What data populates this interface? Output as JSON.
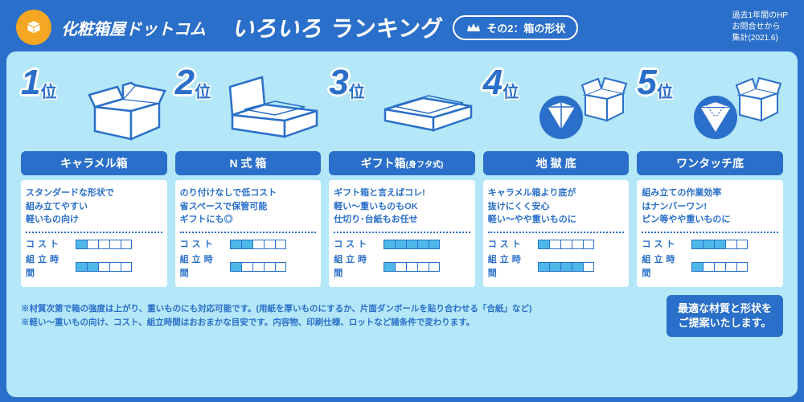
{
  "header": {
    "brand": "化粧箱屋ドットコム",
    "title1": "いろいろ",
    "title2": "ランキング",
    "subtitle": "その2：箱の形状",
    "note1": "過去1年間のHP",
    "note2": "お問合せから",
    "note3": "集計(2021.6)"
  },
  "ranks": [
    {
      "num": "1",
      "suffix": "位",
      "name": "キャラメル箱",
      "nameSmall": "",
      "desc": [
        "スタンダードな形状で",
        "組み立てやすい",
        "軽いもの向け"
      ],
      "cost": 1,
      "time": 2,
      "svg": "box1"
    },
    {
      "num": "2",
      "suffix": "位",
      "name": "N 式 箱",
      "nameSmall": "",
      "desc": [
        "のり付けなしで低コスト",
        "省スペースで保管可能",
        "ギフトにも◎"
      ],
      "cost": 2,
      "time": 1,
      "svg": "box2"
    },
    {
      "num": "3",
      "suffix": "位",
      "name": "ギフト箱",
      "nameSmall": "(身フタ式)",
      "desc": [
        "ギフト箱と言えばコレ!",
        "軽い〜重いものもOK",
        "仕切り･台紙もお任せ"
      ],
      "cost": 5,
      "time": 1,
      "svg": "box3"
    },
    {
      "num": "4",
      "suffix": "位",
      "name": "地 獄 底",
      "nameSmall": "",
      "desc": [
        "キャラメル箱より底が",
        "抜けにくく安心",
        "軽い〜やや重いものに"
      ],
      "cost": 1,
      "time": 4,
      "svg": "box4"
    },
    {
      "num": "5",
      "suffix": "位",
      "name": "ワンタッチ底",
      "nameSmall": "",
      "desc": [
        "組み立ての作業効率",
        "はナンバーワン!",
        "ピン等やや重いものに"
      ],
      "cost": 3,
      "time": 1,
      "svg": "box5"
    }
  ],
  "metrics": {
    "cost": "コスト",
    "time": "組立時間"
  },
  "footer": {
    "line1": "※材質次第で箱の強度は上がり、重いものにも対応可能です。(用紙を厚いものにするか、片面ダンボールを貼り合わせる「合紙」など)",
    "line2": "※軽い〜重いもの向け、コスト、組立時間はおおまかな目安です。内容物、印刷仕様、ロットなど諸条件で変わります。",
    "cta1": "最適な材質と形状を",
    "cta2": "ご提案いたします。"
  },
  "colors": {
    "primary": "#2a6fc9",
    "accent": "#4db8e8",
    "bg": "#b4e7f8",
    "orange": "#f5a623"
  }
}
